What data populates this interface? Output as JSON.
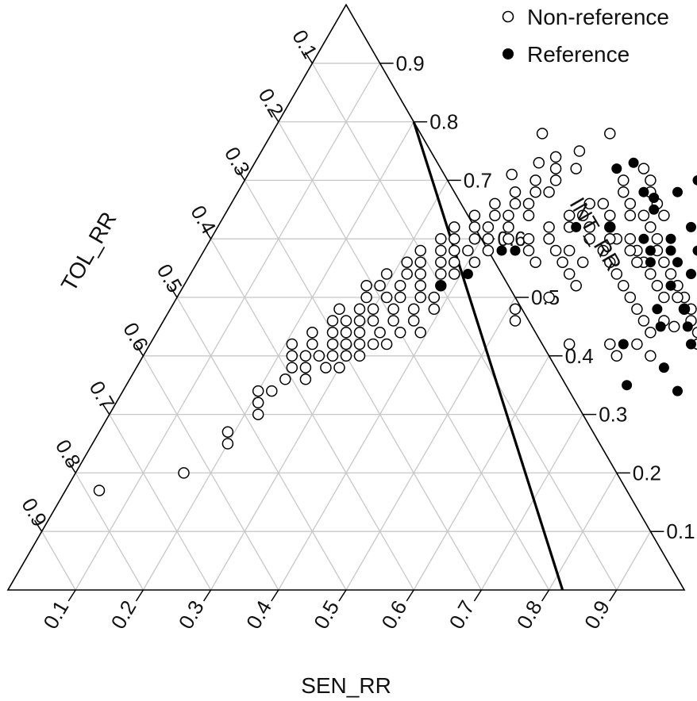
{
  "chart_data": {
    "type": "scatter",
    "subtype": "ternary",
    "axes": {
      "bottom": {
        "label": "SEN_RR",
        "ticks": [
          "0.1",
          "0.2",
          "0.3",
          "0.4",
          "0.5",
          "0.6",
          "0.7",
          "0.8",
          "0.9"
        ]
      },
      "right": {
        "label": "INT_RR",
        "ticks": [
          "0.9",
          "0.8",
          "0.7",
          "0.6",
          "0.5",
          "0.4",
          "0.3",
          "0.2",
          "0.1"
        ]
      },
      "left": {
        "label": "TOL_RR",
        "ticks": [
          "0.1",
          "0.2",
          "0.3",
          "0.4",
          "0.5",
          "0.6",
          "0.7",
          "0.8",
          "0.9"
        ]
      }
    },
    "grid": true,
    "legend": {
      "position": "top-right",
      "entries": [
        {
          "label": "Non-reference",
          "marker": "open-circle"
        },
        {
          "label": "Reference",
          "marker": "filled-circle"
        }
      ]
    },
    "colors": {
      "marker": "#000000",
      "grid": "#c8c8c8",
      "line": "#000000"
    },
    "boundary_line": {
      "points": [
        {
          "SEN": 0.2,
          "INT": 0.8
        },
        {
          "SEN": 0.82,
          "INT": 0.0
        }
      ]
    },
    "series": [
      {
        "name": "Non-reference",
        "points": [
          [
            0.05,
            0.17
          ],
          [
            0.16,
            0.2
          ],
          [
            0.2,
            0.25
          ],
          [
            0.19,
            0.27
          ],
          [
            0.22,
            0.3
          ],
          [
            0.21,
            0.32
          ],
          [
            0.2,
            0.34
          ],
          [
            0.22,
            0.34
          ],
          [
            0.23,
            0.36
          ],
          [
            0.26,
            0.36
          ],
          [
            0.23,
            0.38
          ],
          [
            0.25,
            0.38
          ],
          [
            0.28,
            0.38
          ],
          [
            0.3,
            0.38
          ],
          [
            0.22,
            0.4
          ],
          [
            0.24,
            0.4
          ],
          [
            0.26,
            0.4
          ],
          [
            0.28,
            0.4
          ],
          [
            0.3,
            0.4
          ],
          [
            0.32,
            0.4
          ],
          [
            0.21,
            0.42
          ],
          [
            0.24,
            0.42
          ],
          [
            0.27,
            0.42
          ],
          [
            0.29,
            0.42
          ],
          [
            0.31,
            0.42
          ],
          [
            0.33,
            0.42
          ],
          [
            0.35,
            0.42
          ],
          [
            0.23,
            0.44
          ],
          [
            0.26,
            0.44
          ],
          [
            0.28,
            0.44
          ],
          [
            0.3,
            0.44
          ],
          [
            0.33,
            0.44
          ],
          [
            0.36,
            0.44
          ],
          [
            0.39,
            0.44
          ],
          [
            0.25,
            0.46
          ],
          [
            0.27,
            0.46
          ],
          [
            0.29,
            0.46
          ],
          [
            0.31,
            0.46
          ],
          [
            0.34,
            0.46
          ],
          [
            0.37,
            0.46
          ],
          [
            0.25,
            0.48
          ],
          [
            0.28,
            0.48
          ],
          [
            0.3,
            0.48
          ],
          [
            0.33,
            0.48
          ],
          [
            0.36,
            0.48
          ],
          [
            0.39,
            0.48
          ],
          [
            0.28,
            0.5
          ],
          [
            0.31,
            0.5
          ],
          [
            0.33,
            0.5
          ],
          [
            0.36,
            0.5
          ],
          [
            0.38,
            0.5
          ],
          [
            0.27,
            0.52
          ],
          [
            0.29,
            0.52
          ],
          [
            0.32,
            0.52
          ],
          [
            0.35,
            0.52
          ],
          [
            0.38,
            0.52
          ],
          [
            0.29,
            0.54
          ],
          [
            0.32,
            0.54
          ],
          [
            0.34,
            0.54
          ],
          [
            0.37,
            0.54
          ],
          [
            0.39,
            0.54
          ],
          [
            0.31,
            0.56
          ],
          [
            0.33,
            0.56
          ],
          [
            0.36,
            0.56
          ],
          [
            0.38,
            0.56
          ],
          [
            0.41,
            0.56
          ],
          [
            0.32,
            0.58
          ],
          [
            0.35,
            0.58
          ],
          [
            0.37,
            0.58
          ],
          [
            0.39,
            0.58
          ],
          [
            0.42,
            0.58
          ],
          [
            0.34,
            0.6
          ],
          [
            0.36,
            0.6
          ],
          [
            0.39,
            0.6
          ],
          [
            0.41,
            0.6
          ],
          [
            0.44,
            0.6
          ],
          [
            0.35,
            0.62
          ],
          [
            0.38,
            0.62
          ],
          [
            0.4,
            0.62
          ],
          [
            0.43,
            0.62
          ],
          [
            0.37,
            0.64
          ],
          [
            0.4,
            0.64
          ],
          [
            0.42,
            0.64
          ],
          [
            0.45,
            0.64
          ],
          [
            0.39,
            0.66
          ],
          [
            0.42,
            0.66
          ],
          [
            0.44,
            0.66
          ],
          [
            0.41,
            0.68
          ],
          [
            0.44,
            0.68
          ],
          [
            0.46,
            0.68
          ],
          [
            0.43,
            0.7
          ],
          [
            0.46,
            0.7
          ],
          [
            0.45,
            0.72
          ],
          [
            0.48,
            0.72
          ],
          [
            0.47,
            0.75
          ],
          [
            0.5,
            0.78
          ],
          [
            0.4,
            0.78
          ],
          [
            0.44,
            0.74
          ],
          [
            0.39,
            0.71
          ],
          [
            0.42,
            0.73
          ],
          [
            0.51,
            0.48
          ],
          [
            0.52,
            0.46
          ],
          [
            0.55,
            0.5
          ],
          [
            0.58,
            0.52
          ],
          [
            0.62,
            0.42
          ],
          [
            0.54,
            0.58
          ],
          [
            0.56,
            0.6
          ],
          [
            0.58,
            0.62
          ],
          [
            0.6,
            0.6
          ],
          [
            0.62,
            0.6
          ],
          [
            0.57,
            0.56
          ],
          [
            0.59,
            0.58
          ],
          [
            0.61,
            0.56
          ],
          [
            0.63,
            0.54
          ],
          [
            0.64,
            0.58
          ],
          [
            0.66,
            0.56
          ],
          [
            0.68,
            0.54
          ],
          [
            0.65,
            0.52
          ],
          [
            0.67,
            0.5
          ],
          [
            0.69,
            0.48
          ],
          [
            0.7,
            0.52
          ],
          [
            0.72,
            0.5
          ],
          [
            0.71,
            0.46
          ],
          [
            0.73,
            0.44
          ],
          [
            0.74,
            0.46
          ],
          [
            0.76,
            0.45
          ],
          [
            0.77,
            0.48
          ],
          [
            0.75,
            0.5
          ],
          [
            0.78,
            0.52
          ],
          [
            0.79,
            0.5
          ],
          [
            0.8,
            0.48
          ],
          [
            0.82,
            0.46
          ],
          [
            0.84,
            0.44
          ],
          [
            0.81,
            0.42
          ],
          [
            0.83,
            0.4
          ],
          [
            0.85,
            0.42
          ],
          [
            0.86,
            0.38
          ],
          [
            0.88,
            0.36
          ],
          [
            0.89,
            0.33
          ],
          [
            0.91,
            0.3
          ],
          [
            0.53,
            0.64
          ],
          [
            0.55,
            0.66
          ],
          [
            0.57,
            0.68
          ],
          [
            0.59,
            0.66
          ],
          [
            0.56,
            0.7
          ],
          [
            0.58,
            0.72
          ],
          [
            0.6,
            0.7
          ],
          [
            0.61,
            0.68
          ],
          [
            0.63,
            0.66
          ],
          [
            0.65,
            0.64
          ],
          [
            0.62,
            0.64
          ],
          [
            0.64,
            0.62
          ],
          [
            0.66,
            0.6
          ],
          [
            0.6,
            0.64
          ],
          [
            0.52,
            0.62
          ],
          [
            0.5,
            0.6
          ],
          [
            0.52,
            0.58
          ],
          [
            0.54,
            0.56
          ],
          [
            0.56,
            0.54
          ],
          [
            0.5,
            0.56
          ],
          [
            0.48,
            0.58
          ],
          [
            0.47,
            0.6
          ],
          [
            0.49,
            0.62
          ],
          [
            0.51,
            0.64
          ],
          [
            0.53,
            0.66
          ],
          [
            0.55,
            0.62
          ],
          [
            0.57,
            0.64
          ],
          [
            0.59,
            0.6
          ],
          [
            0.63,
            0.58
          ],
          [
            0.65,
            0.56
          ],
          [
            0.67,
            0.58
          ],
          [
            0.69,
            0.56
          ],
          [
            0.71,
            0.54
          ],
          [
            0.73,
            0.52
          ],
          [
            0.74,
            0.5
          ],
          [
            0.76,
            0.48
          ],
          [
            0.78,
            0.46
          ],
          [
            0.8,
            0.44
          ],
          [
            0.82,
            0.42
          ],
          [
            0.84,
            0.4
          ],
          [
            0.68,
            0.42
          ],
          [
            0.7,
            0.4
          ],
          [
            0.72,
            0.42
          ],
          [
            0.75,
            0.4
          ]
        ]
      },
      {
        "name": "Reference",
        "points": [
          [
            0.53,
            0.62
          ],
          [
            0.58,
            0.62
          ],
          [
            0.54,
            0.72
          ],
          [
            0.56,
            0.73
          ],
          [
            0.6,
            0.68
          ],
          [
            0.62,
            0.67
          ],
          [
            0.63,
            0.65
          ],
          [
            0.65,
            0.68
          ],
          [
            0.67,
            0.7
          ],
          [
            0.64,
            0.6
          ],
          [
            0.66,
            0.58
          ],
          [
            0.68,
            0.6
          ],
          [
            0.7,
            0.62
          ],
          [
            0.67,
            0.56
          ],
          [
            0.69,
            0.58
          ],
          [
            0.71,
            0.56
          ],
          [
            0.73,
            0.58
          ],
          [
            0.75,
            0.6
          ],
          [
            0.76,
            0.56
          ],
          [
            0.72,
            0.52
          ],
          [
            0.74,
            0.54
          ],
          [
            0.78,
            0.54
          ],
          [
            0.8,
            0.52
          ],
          [
            0.72,
            0.48
          ],
          [
            0.76,
            0.48
          ],
          [
            0.74,
            0.45
          ],
          [
            0.78,
            0.45
          ],
          [
            0.7,
            0.42
          ],
          [
            0.8,
            0.42
          ],
          [
            0.83,
            0.44
          ],
          [
            0.85,
            0.41
          ],
          [
            0.86,
            0.39
          ],
          [
            0.78,
            0.38
          ],
          [
            0.74,
            0.35
          ],
          [
            0.82,
            0.34
          ],
          [
            0.88,
            0.33
          ],
          [
            0.9,
            0.3
          ],
          [
            0.46,
            0.58
          ],
          [
            0.41,
            0.54
          ],
          [
            0.38,
            0.52
          ],
          [
            0.44,
            0.58
          ]
        ]
      }
    ]
  }
}
